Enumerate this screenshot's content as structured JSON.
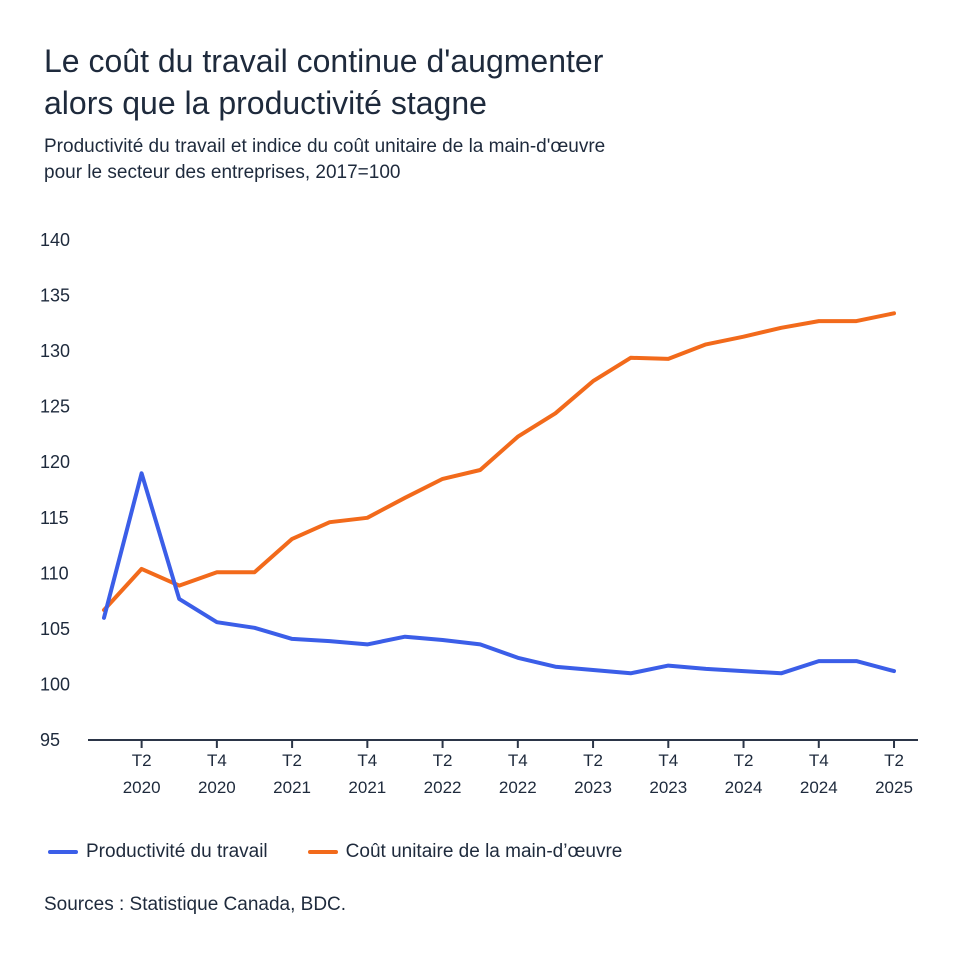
{
  "header": {
    "title_line1": "Le coût du travail continue d'augmenter",
    "title_line2": "alors que la productivité stagne",
    "subtitle_line1": "Productivité du travail et indice du coût unitaire de la main-d'œuvre",
    "subtitle_line2": "pour le secteur des entreprises, 2017=100"
  },
  "footer": {
    "source": "Sources : Statistique Canada, BDC."
  },
  "colors": {
    "productivity": "#3b5ee8",
    "labor_cost": "#f26a1b",
    "axis": "#2b3547"
  },
  "chart_data": {
    "type": "line",
    "title": "",
    "ylabel": "",
    "xlabel": "",
    "ylim": [
      95,
      140
    ],
    "yticks": [
      95,
      100,
      105,
      110,
      115,
      120,
      125,
      130,
      135,
      140
    ],
    "x": [
      "T1 2020",
      "T2 2020",
      "T3 2020",
      "T4 2020",
      "T1 2021",
      "T2 2021",
      "T3 2021",
      "T4 2021",
      "T1 2022",
      "T2 2022",
      "T3 2022",
      "T4 2022",
      "T1 2023",
      "T2 2023",
      "T3 2023",
      "T4 2023",
      "T1 2024",
      "T2 2024",
      "T3 2024",
      "T4 2024",
      "T1 2025",
      "T2 2025"
    ],
    "xticks": [
      {
        "index": 1,
        "top": "T2",
        "bottom": "2020"
      },
      {
        "index": 3,
        "top": "T4",
        "bottom": "2020"
      },
      {
        "index": 5,
        "top": "T2",
        "bottom": "2021"
      },
      {
        "index": 7,
        "top": "T4",
        "bottom": "2021"
      },
      {
        "index": 9,
        "top": "T2",
        "bottom": "2022"
      },
      {
        "index": 11,
        "top": "T4",
        "bottom": "2022"
      },
      {
        "index": 13,
        "top": "T2",
        "bottom": "2023"
      },
      {
        "index": 15,
        "top": "T4",
        "bottom": "2023"
      },
      {
        "index": 17,
        "top": "T2",
        "bottom": "2024"
      },
      {
        "index": 19,
        "top": "T4",
        "bottom": "2024"
      },
      {
        "index": 21,
        "top": "T2",
        "bottom": "2025"
      }
    ],
    "series": [
      {
        "name": "Productivité du travail",
        "color": "#3b5ee8",
        "values": [
          106.0,
          119.0,
          107.7,
          105.6,
          105.1,
          104.1,
          103.9,
          103.6,
          104.3,
          104.0,
          103.6,
          102.4,
          101.6,
          101.3,
          101.0,
          101.7,
          101.4,
          101.2,
          101.0,
          102.1,
          102.1,
          101.2
        ]
      },
      {
        "name": "Coût unitaire de la main-d’œuvre",
        "color": "#f26a1b",
        "values": [
          106.7,
          110.4,
          108.9,
          110.1,
          110.1,
          113.1,
          114.6,
          115.0,
          116.8,
          118.5,
          119.3,
          122.3,
          124.4,
          127.3,
          129.4,
          129.3,
          130.6,
          131.3,
          132.1,
          132.7,
          132.7,
          133.4
        ]
      }
    ],
    "legend": "bottom-left",
    "grid": false
  }
}
